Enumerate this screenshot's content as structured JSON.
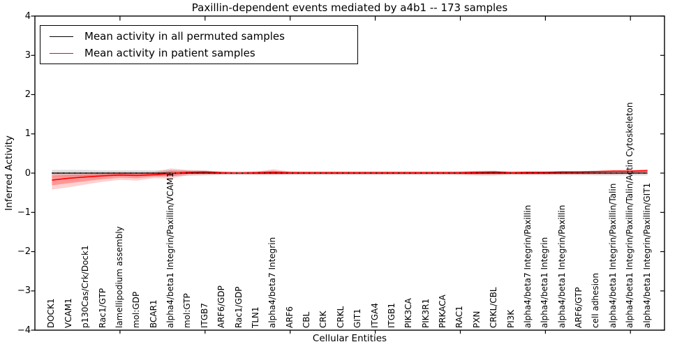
{
  "window": {
    "kind": "matplotlib-figure"
  },
  "chart_data": {
    "type": "line",
    "title": "Paxillin-dependent events mediated by a4b1 -- 173 samples",
    "xlabel": "Cellular Entities",
    "ylabel": "Inferred Activity",
    "ylim": [
      -4,
      4
    ],
    "yticks": [
      -4,
      -3,
      -2,
      -1,
      0,
      1,
      2,
      3,
      4
    ],
    "xtick_positions": [
      5,
      10,
      15,
      20,
      25,
      30,
      35
    ],
    "grid": false,
    "legend_position": "upper left",
    "zero_line_style": "dotted",
    "categories": [
      "DOCK1",
      "VCAM1",
      "p130Cas/Crk/Dock1",
      "Rac1/GTP",
      "lamellipodium assembly",
      "mol:GDP",
      "BCAR1",
      "alpha4/beta1 Integrin/Paxillin/VCAM1",
      "mol:GTP",
      "ITGB7",
      "ARF6/GDP",
      "Rac1/GDP",
      "TLN1",
      "alpha4/beta7 Integrin",
      "ARF6",
      "CBL",
      "CRK",
      "CRKL",
      "GIT1",
      "ITGA4",
      "ITGB1",
      "PIK3CA",
      "PIK3R1",
      "PRKACA",
      "RAC1",
      "PXN",
      "CRKL/CBL",
      "PI3K",
      "alpha4/beta7 Integrin/Paxillin",
      "alpha4/beta1 Integrin",
      "alpha4/beta1 Integrin/Paxillin",
      "ARF6/GTP",
      "cell adhesion",
      "alpha4/beta1 Integrin/Paxillin/Talin",
      "alpha4/beta1 Integrin/Paxillin/Talin/Actin Cytoskeleton",
      "alpha4/beta1 Integrin/Paxillin/GIT1"
    ],
    "series": [
      {
        "name": "Mean activity in all permuted samples",
        "color": "#000000",
        "band_color": "#000000",
        "band_opacity": 0.13,
        "values": [
          0,
          0,
          0,
          0,
          0,
          0,
          0,
          0,
          0,
          0,
          0,
          0,
          0,
          0,
          0,
          0,
          0,
          0,
          0,
          0,
          0,
          0,
          0,
          0,
          0,
          0,
          0,
          0,
          0,
          0,
          0,
          0,
          0,
          0,
          0,
          0
        ],
        "band_upper": [
          0.08,
          0.08,
          0.08,
          0.07,
          0.07,
          0.07,
          0.07,
          0.08,
          0.07,
          0.06,
          0.05,
          0.05,
          0.05,
          0.05,
          0.05,
          0.05,
          0.05,
          0.05,
          0.05,
          0.05,
          0.05,
          0.05,
          0.05,
          0.05,
          0.05,
          0.05,
          0.05,
          0.05,
          0.05,
          0.05,
          0.05,
          0.05,
          0.06,
          0.06,
          0.06,
          0.06
        ],
        "band_lower": [
          -0.08,
          -0.08,
          -0.08,
          -0.07,
          -0.07,
          -0.07,
          -0.07,
          -0.08,
          -0.07,
          -0.06,
          -0.05,
          -0.05,
          -0.05,
          -0.05,
          -0.05,
          -0.05,
          -0.05,
          -0.05,
          -0.05,
          -0.05,
          -0.05,
          -0.05,
          -0.05,
          -0.05,
          -0.05,
          -0.05,
          -0.05,
          -0.05,
          -0.05,
          -0.05,
          -0.05,
          -0.05,
          -0.06,
          -0.06,
          -0.06,
          -0.06
        ]
      },
      {
        "name": "Mean activity in patient samples",
        "color": "#ff0000",
        "band_color": "#ff0000",
        "band_opacity": 0.18,
        "values": [
          -0.18,
          -0.13,
          -0.1,
          -0.07,
          -0.05,
          -0.06,
          -0.04,
          -0.01,
          0.02,
          0.03,
          0.01,
          0.0,
          0.01,
          0.02,
          0.01,
          0.01,
          0.01,
          0.01,
          0.01,
          0.01,
          0.01,
          0.01,
          0.01,
          0.01,
          0.01,
          0.02,
          0.03,
          0.01,
          0.02,
          0.02,
          0.03,
          0.03,
          0.04,
          0.05,
          0.05,
          0.06
        ],
        "band_upper": [
          0.02,
          0.01,
          0.01,
          0.02,
          0.02,
          0.02,
          0.03,
          0.12,
          0.08,
          0.07,
          0.03,
          0.03,
          0.04,
          0.1,
          0.04,
          0.03,
          0.03,
          0.03,
          0.03,
          0.03,
          0.03,
          0.03,
          0.03,
          0.03,
          0.04,
          0.06,
          0.06,
          0.03,
          0.04,
          0.04,
          0.05,
          0.05,
          0.06,
          0.08,
          0.08,
          0.1
        ],
        "band_lower": [
          -0.42,
          -0.36,
          -0.29,
          -0.22,
          -0.17,
          -0.19,
          -0.13,
          -0.14,
          -0.05,
          -0.04,
          -0.03,
          -0.03,
          -0.04,
          -0.04,
          -0.03,
          -0.03,
          -0.03,
          -0.03,
          -0.03,
          -0.03,
          -0.03,
          -0.03,
          -0.03,
          -0.03,
          -0.04,
          -0.06,
          -0.06,
          -0.03,
          -0.04,
          -0.04,
          -0.04,
          -0.04,
          -0.03,
          -0.03,
          -0.02,
          -0.01
        ]
      }
    ]
  }
}
